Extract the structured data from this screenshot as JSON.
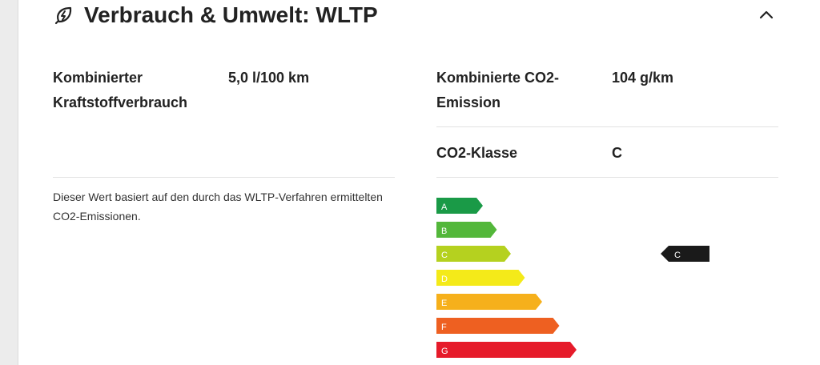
{
  "section": {
    "title": "Verbrauch & Umwelt: WLTP",
    "icon": "lightning-leaf-icon",
    "toggle_icon": "chevron-up-icon"
  },
  "consumption": {
    "label": "Kombinierter Kraftstoffverbrauch",
    "value": "5,0 l/100 km"
  },
  "co2_emission": {
    "label": "Kombinierte CO2-Emission",
    "value": "104 g/km"
  },
  "co2_class": {
    "label": "CO2-Klasse",
    "value": "C"
  },
  "note": "Dieser Wert basiert auf den durch das WLTP-Verfahren ermittelten CO2-Emissionen.",
  "energy_label": {
    "classes": [
      {
        "letter": "A",
        "color": "#1a9a47"
      },
      {
        "letter": "B",
        "color": "#53b73a"
      },
      {
        "letter": "C",
        "color": "#b5d11f"
      },
      {
        "letter": "D",
        "color": "#f4ea19"
      },
      {
        "letter": "E",
        "color": "#f6b01b"
      },
      {
        "letter": "F",
        "color": "#ee6021"
      },
      {
        "letter": "G",
        "color": "#e61b2a"
      }
    ],
    "selected": "C",
    "marker_color": "#1a1a1a"
  }
}
